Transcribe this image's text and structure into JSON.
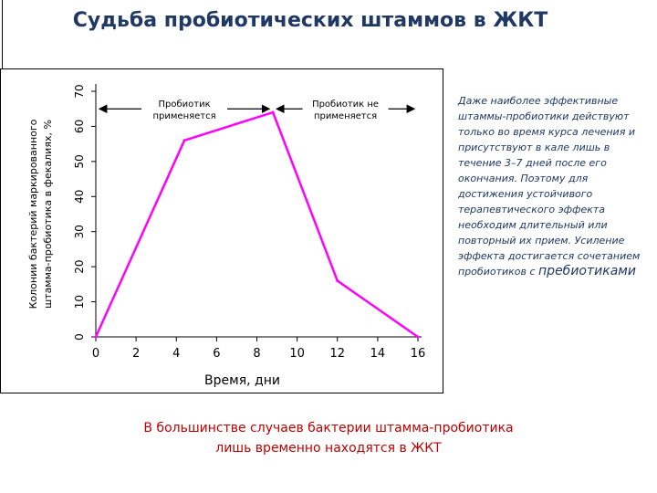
{
  "page_title": "Судьба пробиотических штаммов в ЖКТ",
  "side_note": {
    "text": "Даже наиболее эффективные штаммы-пробиотики действуют только во время курса лечения и присутствуют в кале лишь в течение 3–7 дней после его окончания. Поэтому для достижения устойчивого терапевтического эффекта необходим длительный или повторный их прием. Усиление эффекта достигается сочетанием пробиотиков с",
    "emphasis": "пребиотиками"
  },
  "caption": {
    "line1": "В большинстве случаев бактерии штамма-пробиотика",
    "line2": "лишь временно находятся в ЖКТ"
  },
  "chart_data": {
    "type": "line",
    "title": "",
    "xlabel": "Время, дни",
    "ylabel_line1": "Колонии бактерий маркированного",
    "ylabel_line2": "штамма-пробиотика в фекалиях, %",
    "xlim": [
      0,
      16
    ],
    "ylim": [
      0,
      70
    ],
    "x_ticks": [
      0,
      2,
      4,
      6,
      8,
      10,
      12,
      14,
      16
    ],
    "y_ticks": [
      0,
      10,
      20,
      30,
      40,
      50,
      60,
      70
    ],
    "grid": false,
    "series": [
      {
        "color": "#ff00ff",
        "x": [
          0,
          4.4,
          8.8,
          12,
          16
        ],
        "y": [
          0,
          56,
          64,
          16,
          0
        ]
      }
    ],
    "annotations": [
      {
        "text_line1": "Пробиотик",
        "text_line2": "применяется",
        "from_x": 0,
        "to_x": 8.8,
        "at_y": 65
      },
      {
        "text_line1": "Пробиотик не",
        "text_line2": "применяется",
        "from_x": 8.8,
        "to_x": 16,
        "at_y": 65
      }
    ]
  }
}
